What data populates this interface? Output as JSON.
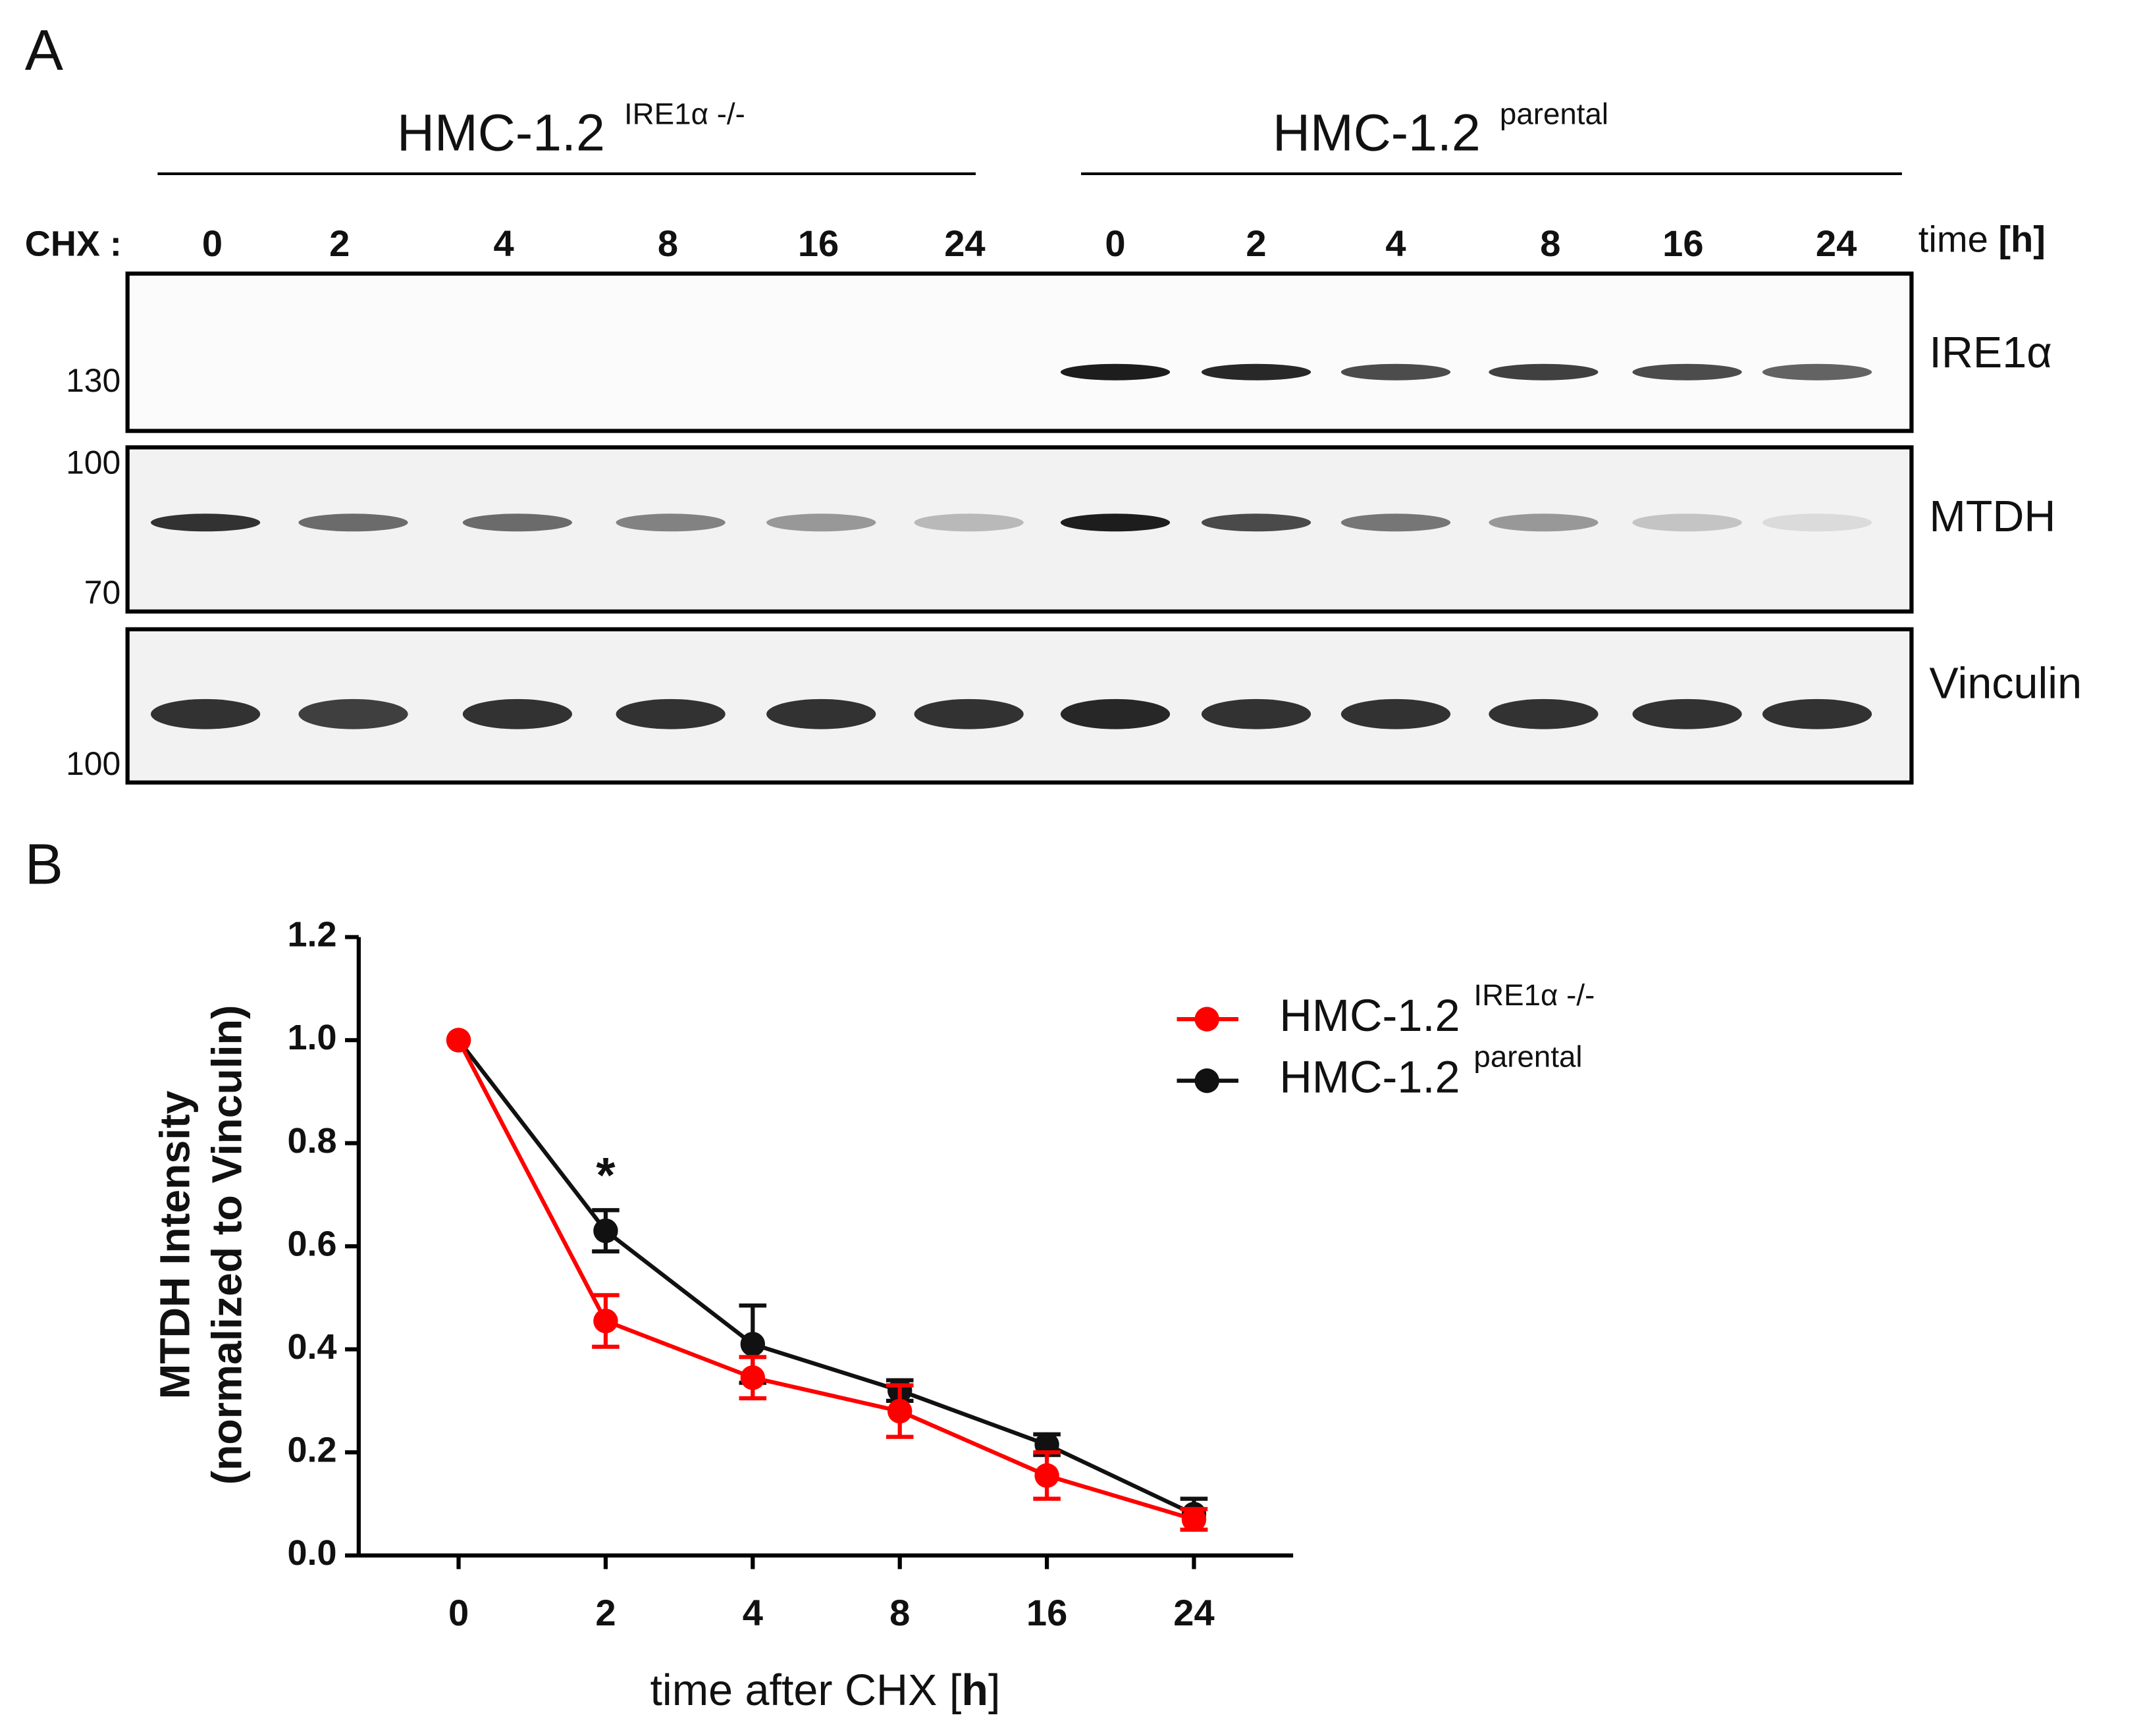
{
  "blot": {
    "panel_label": "A",
    "groups": [
      {
        "name": "HMC-1.2",
        "superscript": "IRE1α -/-"
      },
      {
        "name": "HMC-1.2",
        "superscript": "parental"
      }
    ],
    "treatment_label": "CHX :",
    "times": [
      "0",
      "2",
      "4",
      "8",
      "16",
      "24",
      "0",
      "2",
      "4",
      "8",
      "16",
      "24"
    ],
    "time_label": [
      "time ",
      "[",
      "h",
      "]"
    ],
    "proteins": [
      "IRE1α",
      "MTDH",
      "Vinculin"
    ],
    "markers": [
      "130",
      "100",
      "70",
      "100"
    ]
  },
  "chart_data": {
    "type": "line",
    "panel_label": "B",
    "x_label": [
      "time after CHX ",
      "[",
      "h",
      "]"
    ],
    "y_label": [
      "MTDH Intensity",
      "(normalized to Vinculin)"
    ],
    "categories": [
      "0",
      "2",
      "4",
      "8",
      "16",
      "24"
    ],
    "series": [
      {
        "name": "HMC-1.2",
        "superscript": "IRE1α -/-",
        "color": "#ff0000",
        "values": [
          1.0,
          0.455,
          0.345,
          0.28,
          0.155,
          0.07
        ],
        "errors": [
          0.0,
          0.05,
          0.04,
          0.05,
          0.045,
          0.02
        ]
      },
      {
        "name": "HMC-1.2",
        "superscript": "parental",
        "color": "#111111",
        "values": [
          1.0,
          0.63,
          0.41,
          0.32,
          0.215,
          0.08
        ],
        "errors": [
          0.0,
          0.04,
          0.075,
          0.02,
          0.02,
          0.03
        ]
      }
    ],
    "ylim": [
      0,
      1.2
    ],
    "yticks": [
      {
        "value": 0,
        "label": "0.0"
      },
      0.2,
      0.4,
      0.6,
      0.8,
      {
        "value": 1,
        "label": "1.0"
      },
      1.2
    ],
    "annotations": [
      {
        "category": 1,
        "text": "*"
      }
    ]
  }
}
